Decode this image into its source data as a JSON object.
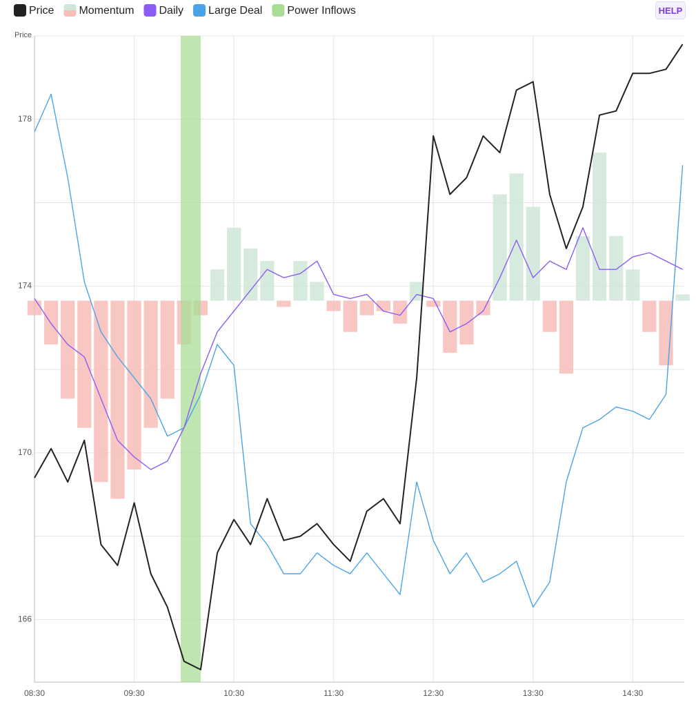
{
  "button": "HELP",
  "chart_data": {
    "type": "line",
    "axis_label": "Price",
    "x": [
      "08:30",
      "08:40",
      "08:50",
      "09:00",
      "09:10",
      "09:20",
      "09:30",
      "09:40",
      "09:50",
      "10:00",
      "10:10",
      "10:20",
      "10:30",
      "10:40",
      "10:50",
      "11:00",
      "11:10",
      "11:20",
      "11:30",
      "11:40",
      "11:50",
      "12:00",
      "12:10",
      "12:20",
      "12:30",
      "12:40",
      "12:50",
      "13:00",
      "13:10",
      "13:20",
      "13:30",
      "13:40",
      "13:50",
      "14:00",
      "14:10",
      "14:20",
      "14:30",
      "14:40",
      "14:50",
      "15:00"
    ],
    "xlim": [
      "08:30",
      "15:01"
    ],
    "xticks": [
      "08:30",
      "09:30",
      "10:30",
      "11:30",
      "12:30",
      "13:30",
      "14:30"
    ],
    "ylim": [
      164.5,
      180
    ],
    "yticks": [
      166,
      170,
      174,
      178
    ],
    "ygrid": [
      168,
      172,
      176,
      180
    ],
    "grid": true,
    "series": [
      {
        "name": "Price",
        "color": "#222222",
        "values": [
          169.4,
          170.1,
          169.3,
          170.3,
          167.8,
          167.3,
          168.8,
          167.1,
          166.3,
          165.0,
          164.8,
          167.6,
          168.4,
          167.8,
          168.9,
          167.9,
          168.0,
          168.3,
          167.8,
          167.4,
          168.6,
          168.9,
          168.3,
          171.8,
          177.6,
          176.2,
          176.6,
          177.6,
          177.2,
          178.7,
          178.9,
          176.2,
          174.9,
          175.9,
          178.1,
          178.2,
          179.1,
          179.1,
          179.2,
          179.8
        ]
      },
      {
        "name": "Momentum",
        "type": "bar",
        "base": 173.65,
        "colors": {
          "up": "#cfe6d8",
          "down": "#f7bdb8"
        },
        "values": [
          173.3,
          172.6,
          171.3,
          170.6,
          169.3,
          168.9,
          169.6,
          170.6,
          171.3,
          172.6,
          173.3,
          174.4,
          175.4,
          174.9,
          174.6,
          173.5,
          174.6,
          174.1,
          173.4,
          172.9,
          173.3,
          173.4,
          173.1,
          174.1,
          173.5,
          172.4,
          172.6,
          173.3,
          176.2,
          176.7,
          175.9,
          172.9,
          171.9,
          175.2,
          177.2,
          175.2,
          174.4,
          172.9,
          172.1,
          173.8
        ]
      },
      {
        "name": "Daily",
        "color": "#8b5cf6",
        "values": [
          173.7,
          173.1,
          172.6,
          172.3,
          171.3,
          170.3,
          169.9,
          169.6,
          169.8,
          170.6,
          171.9,
          172.9,
          173.4,
          173.9,
          174.4,
          174.2,
          174.3,
          174.6,
          173.8,
          173.7,
          173.8,
          173.4,
          173.3,
          173.8,
          173.7,
          172.9,
          173.1,
          173.4,
          174.2,
          175.1,
          174.2,
          174.6,
          174.4,
          175.4,
          174.4,
          174.4,
          174.7,
          174.8,
          174.6,
          174.4
        ]
      },
      {
        "name": "Large Deal",
        "color": "#4aa3e8",
        "values": [
          177.7,
          178.6,
          176.6,
          174.1,
          172.9,
          172.3,
          171.8,
          171.3,
          170.4,
          170.6,
          171.4,
          172.6,
          172.1,
          168.3,
          167.8,
          167.1,
          167.1,
          167.6,
          167.3,
          167.1,
          167.6,
          167.1,
          166.6,
          169.3,
          167.9,
          167.1,
          167.6,
          166.9,
          167.1,
          167.4,
          166.3,
          166.9,
          169.3,
          170.6,
          170.8,
          171.1,
          171.0,
          170.8,
          171.4,
          176.9
        ]
      },
      {
        "name": "Power Inflows",
        "type": "band",
        "color": "#a9dc95",
        "start": "09:58",
        "end": "10:10"
      }
    ]
  }
}
